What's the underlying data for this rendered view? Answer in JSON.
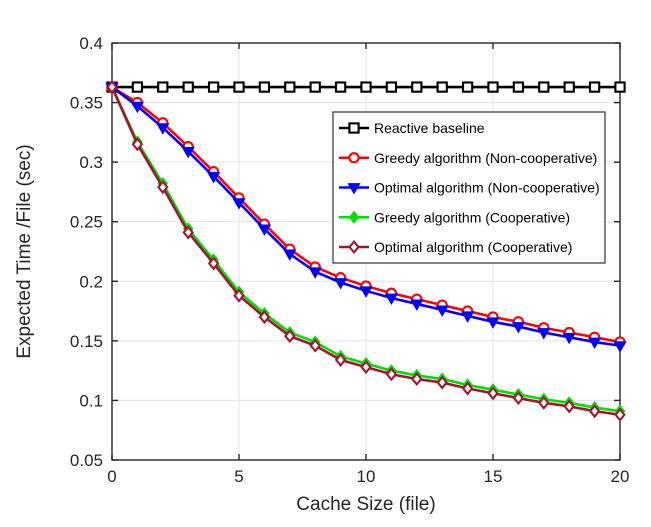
{
  "figure": {
    "background": "#ffffff",
    "axis_color": "#262626",
    "grid_color": "#e3e3e3",
    "legend_border_color": "#333333",
    "legend_background": "#ffffff"
  },
  "chart_data": {
    "type": "line",
    "title": "",
    "xlabel": "Cache Size (file)",
    "ylabel": "Expected Time /File (sec)",
    "xlim": [
      0,
      20
    ],
    "ylim": [
      0.05,
      0.4
    ],
    "xticks": [
      0,
      5,
      10,
      15,
      20
    ],
    "xtick_labels": [
      "0",
      "5",
      "10",
      "15",
      "20"
    ],
    "yticks": [
      0.05,
      0.1,
      0.15,
      0.2,
      0.25,
      0.3,
      0.35,
      0.4
    ],
    "ytick_labels": [
      "0.05",
      "0.1",
      "0.15",
      "0.2",
      "0.25",
      "0.3",
      "0.35",
      "0.4"
    ],
    "grid": true,
    "legend_position": "upper-right",
    "x": [
      0,
      1,
      2,
      3,
      4,
      5,
      6,
      7,
      8,
      9,
      10,
      11,
      12,
      13,
      14,
      15,
      16,
      17,
      18,
      19,
      20
    ],
    "series": [
      {
        "name": "Reactive baseline",
        "color": "#000000",
        "marker": "square-open",
        "values": [
          0.363,
          0.363,
          0.363,
          0.363,
          0.363,
          0.363,
          0.363,
          0.363,
          0.363,
          0.363,
          0.363,
          0.363,
          0.363,
          0.363,
          0.363,
          0.363,
          0.363,
          0.363,
          0.363,
          0.363,
          0.363
        ]
      },
      {
        "name": "Greedy algorithm (Non-cooperative)",
        "color": "#ff0000",
        "marker": "circle-open",
        "values": [
          0.363,
          0.35,
          0.333,
          0.313,
          0.292,
          0.27,
          0.248,
          0.227,
          0.212,
          0.203,
          0.196,
          0.19,
          0.185,
          0.18,
          0.175,
          0.17,
          0.166,
          0.161,
          0.157,
          0.153,
          0.149
        ]
      },
      {
        "name": "Optimal algorithm (Non-cooperative)",
        "color": "#0000ff",
        "marker": "triangle-down-filled",
        "values": [
          0.363,
          0.347,
          0.329,
          0.309,
          0.288,
          0.266,
          0.244,
          0.223,
          0.208,
          0.199,
          0.192,
          0.186,
          0.181,
          0.176,
          0.171,
          0.166,
          0.162,
          0.157,
          0.153,
          0.149,
          0.146
        ]
      },
      {
        "name": "Greedy algorithm (Cooperative)",
        "color": "#00dd00",
        "marker": "diamond-filled",
        "values": [
          0.363,
          0.317,
          0.282,
          0.244,
          0.218,
          0.191,
          0.173,
          0.157,
          0.149,
          0.137,
          0.131,
          0.125,
          0.121,
          0.118,
          0.113,
          0.109,
          0.105,
          0.101,
          0.098,
          0.094,
          0.091
        ]
      },
      {
        "name": "Optimal algorithm (Cooperative)",
        "color": "#a2142f",
        "marker": "diamond-open",
        "values": [
          0.363,
          0.315,
          0.279,
          0.241,
          0.215,
          0.188,
          0.17,
          0.154,
          0.146,
          0.134,
          0.128,
          0.122,
          0.118,
          0.115,
          0.11,
          0.106,
          0.102,
          0.098,
          0.095,
          0.091,
          0.088
        ]
      }
    ]
  }
}
